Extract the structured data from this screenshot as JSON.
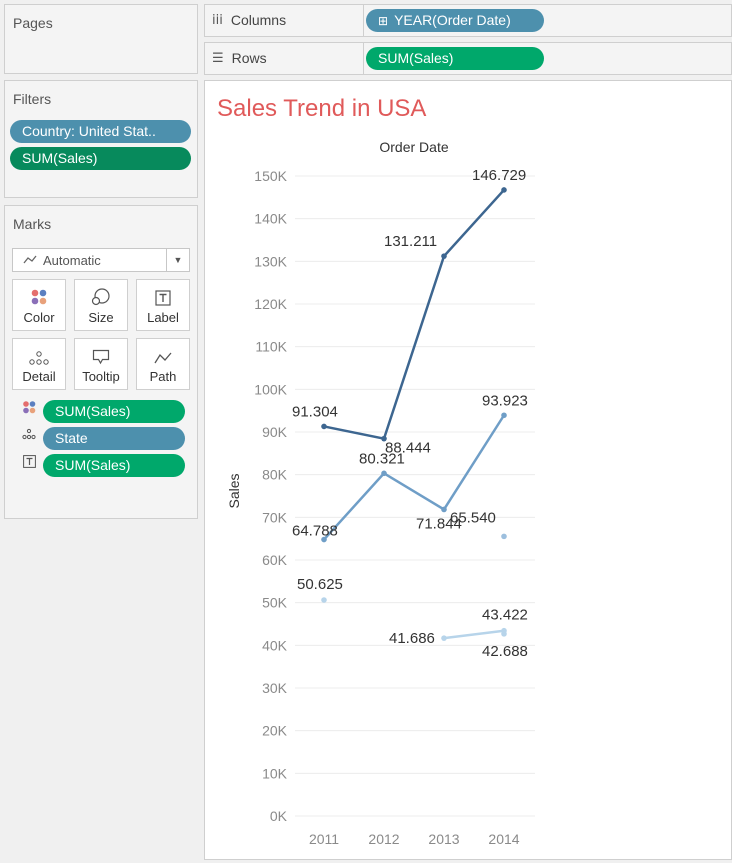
{
  "pages": {
    "title": "Pages"
  },
  "columns": {
    "label": "Columns",
    "pill": "YEAR(Order Date)",
    "pill_icon": "⊞"
  },
  "rows": {
    "label": "Rows",
    "pill": "SUM(Sales)"
  },
  "filters": {
    "title": "Filters",
    "pills": [
      "Country: United Stat..",
      "SUM(Sales)"
    ]
  },
  "marks": {
    "title": "Marks",
    "mark_type": "Automatic",
    "cards": [
      "Color",
      "Size",
      "Label",
      "Detail",
      "Tooltip",
      "Path"
    ],
    "fields": [
      {
        "icon": "color-icon",
        "label": "SUM(Sales)",
        "color": "#00a86b"
      },
      {
        "icon": "detail-icon",
        "label": "State",
        "color": "#4d90ad"
      },
      {
        "icon": "label-icon",
        "label": "SUM(Sales)",
        "color": "#00a86b"
      }
    ]
  },
  "chart": {
    "title": "Sales Trend in USA",
    "title_color": "#e05a5a",
    "header": "Order Date",
    "ylabel": "Sales"
  },
  "chart_data": {
    "type": "line",
    "title": "Sales Trend in USA",
    "xlabel": "Order Date",
    "ylabel": "Sales",
    "categories": [
      "2011",
      "2012",
      "2013",
      "2014"
    ],
    "ylim": [
      0,
      150000
    ],
    "yticks": [
      "0K",
      "10K",
      "20K",
      "30K",
      "40K",
      "50K",
      "60K",
      "70K",
      "80K",
      "90K",
      "100K",
      "110K",
      "120K",
      "130K",
      "140K",
      "150K"
    ],
    "grid": true,
    "series": [
      {
        "color": "#3d6690",
        "values": [
          91304,
          88444,
          131211,
          146729
        ],
        "labels": [
          "91.304",
          "88.444",
          "131.211",
          "146.729"
        ]
      },
      {
        "color": "#6f9ec7",
        "values": [
          64788,
          80321,
          71844,
          93923
        ],
        "labels": [
          "64.788",
          "80.321",
          "71.844",
          "93.923"
        ]
      },
      {
        "color": "#9dbfde",
        "values": [
          null,
          null,
          null,
          65540
        ],
        "labels": [
          "",
          "",
          "",
          "65.540"
        ]
      },
      {
        "color": "#b7d4ea",
        "values": [
          50625,
          null,
          null,
          null
        ],
        "labels": [
          "50.625",
          "",
          "",
          ""
        ]
      },
      {
        "color": "#b7d4ea",
        "values": [
          null,
          null,
          41686,
          43422
        ],
        "labels": [
          "",
          "",
          "41.686",
          "43.422"
        ]
      },
      {
        "color": "#b7d4ea",
        "values": [
          null,
          null,
          null,
          42688
        ],
        "labels": [
          "",
          "",
          "",
          "42.688"
        ]
      }
    ]
  }
}
